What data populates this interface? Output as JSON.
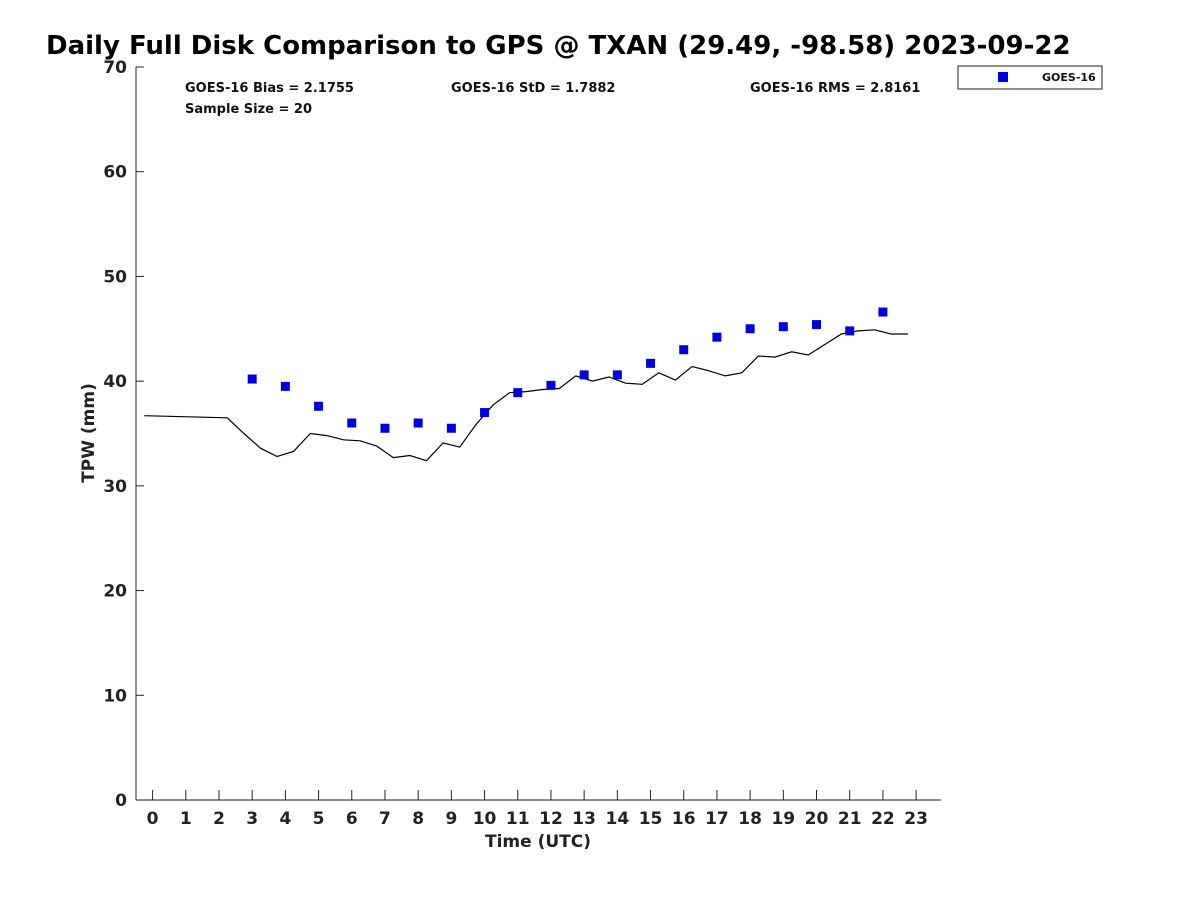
{
  "chart_data": {
    "type": "scatter",
    "title": "Daily Full Disk Comparison to GPS @ TXAN (29.49, -98.58) 2023-09-22",
    "xlabel": "Time (UTC)",
    "ylabel": "TPW (mm)",
    "xlim": [
      -0.5,
      23.75
    ],
    "ylim": [
      0,
      70
    ],
    "x_ticks": [
      0,
      1,
      2,
      3,
      4,
      5,
      6,
      7,
      8,
      9,
      10,
      11,
      12,
      13,
      14,
      15,
      16,
      17,
      18,
      19,
      20,
      21,
      22,
      23
    ],
    "y_ticks": [
      0,
      10,
      20,
      30,
      40,
      50,
      60,
      70
    ],
    "grid": false,
    "legend_position": "top-right",
    "stats": {
      "bias": "GOES-16 Bias = 2.1755",
      "std": "GOES-16 StD = 1.7882",
      "rms": "GOES-16 RMS = 2.8161",
      "sample": "Sample Size = 20"
    },
    "series": [
      {
        "name": "GOES-16",
        "kind": "scatter",
        "marker": "square",
        "color": "#0000dd",
        "x": [
          3,
          4,
          5,
          6,
          7,
          8,
          9,
          10,
          11,
          12,
          13,
          14,
          15,
          16,
          17,
          18,
          19,
          20,
          21,
          22
        ],
        "y": [
          40.2,
          39.5,
          37.6,
          36.0,
          35.5,
          36.0,
          35.5,
          37.0,
          38.9,
          39.6,
          40.6,
          40.6,
          41.7,
          43.0,
          44.2,
          45.0,
          45.2,
          45.4,
          44.8,
          46.6
        ]
      },
      {
        "kind": "line",
        "color": "#000000",
        "x": [
          -0.25,
          2.25,
          2.75,
          3.25,
          3.75,
          4.25,
          4.75,
          5.25,
          5.75,
          6.25,
          6.75,
          7.25,
          7.75,
          8.25,
          8.75,
          9.25,
          9.75,
          10.25,
          10.75,
          11.25,
          11.75,
          12.25,
          12.75,
          13.25,
          13.75,
          14.25,
          14.75,
          15.25,
          15.75,
          16.25,
          16.75,
          17.25,
          17.75,
          18.25,
          18.75,
          19.25,
          19.75,
          20.25,
          20.75,
          21.25,
          21.75,
          22.25,
          22.75
        ],
        "y": [
          36.7,
          36.5,
          35.0,
          33.6,
          32.8,
          33.3,
          35.0,
          34.8,
          34.4,
          34.3,
          33.8,
          32.7,
          32.9,
          32.4,
          34.1,
          33.7,
          35.9,
          37.7,
          38.9,
          39.0,
          39.2,
          39.3,
          40.5,
          40.0,
          40.4,
          39.8,
          39.7,
          40.8,
          40.1,
          41.4,
          41.0,
          40.5,
          40.8,
          42.4,
          42.3,
          42.8,
          42.5,
          43.5,
          44.5,
          44.8,
          44.9,
          44.5,
          44.5
        ]
      }
    ]
  }
}
